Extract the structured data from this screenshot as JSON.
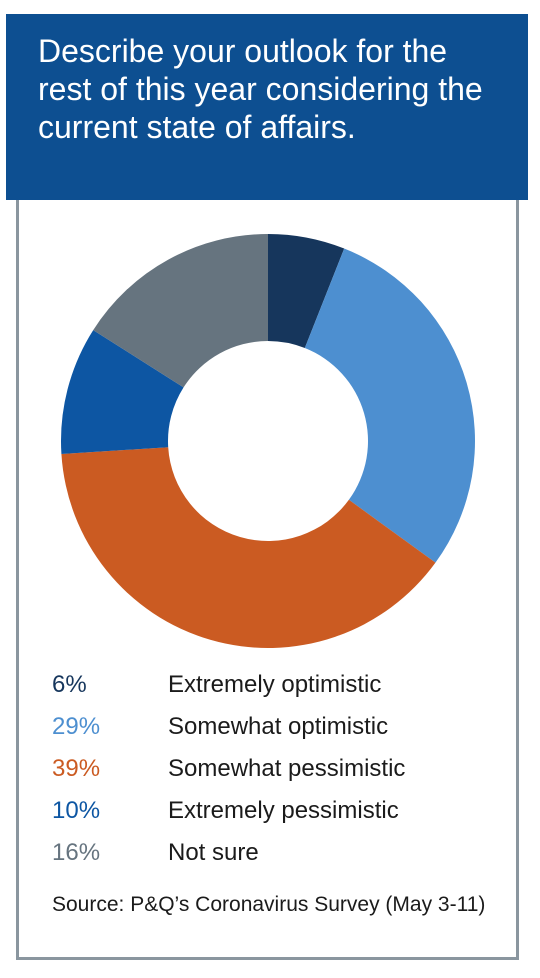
{
  "title": "Describe your outlook for the rest of this year considering the current state of affairs.",
  "chart_data": {
    "type": "pie",
    "title": "Describe your outlook for the rest of this year considering the current state of affairs.",
    "donut": true,
    "start": "top, clockwise",
    "slices": [
      {
        "label": "Extremely optimistic",
        "pct_label": "6%",
        "value": 6,
        "color": "#16365c"
      },
      {
        "label": "Somewhat optimistic",
        "pct_label": "29%",
        "value": 29,
        "color": "#4d8fd0"
      },
      {
        "label": "Somewhat pessimistic",
        "pct_label": "39%",
        "value": 39,
        "color": "#cb5b22"
      },
      {
        "label": "Extremely pessimistic",
        "pct_label": "10%",
        "value": 10,
        "color": "#0d56a3"
      },
      {
        "label": "Not sure",
        "pct_label": "16%",
        "value": 16,
        "color": "#66747f"
      }
    ]
  },
  "legend_label_color": "#1b1b1b",
  "source": "Source: P&Q’s Coronavirus Survey (May 3-11)"
}
